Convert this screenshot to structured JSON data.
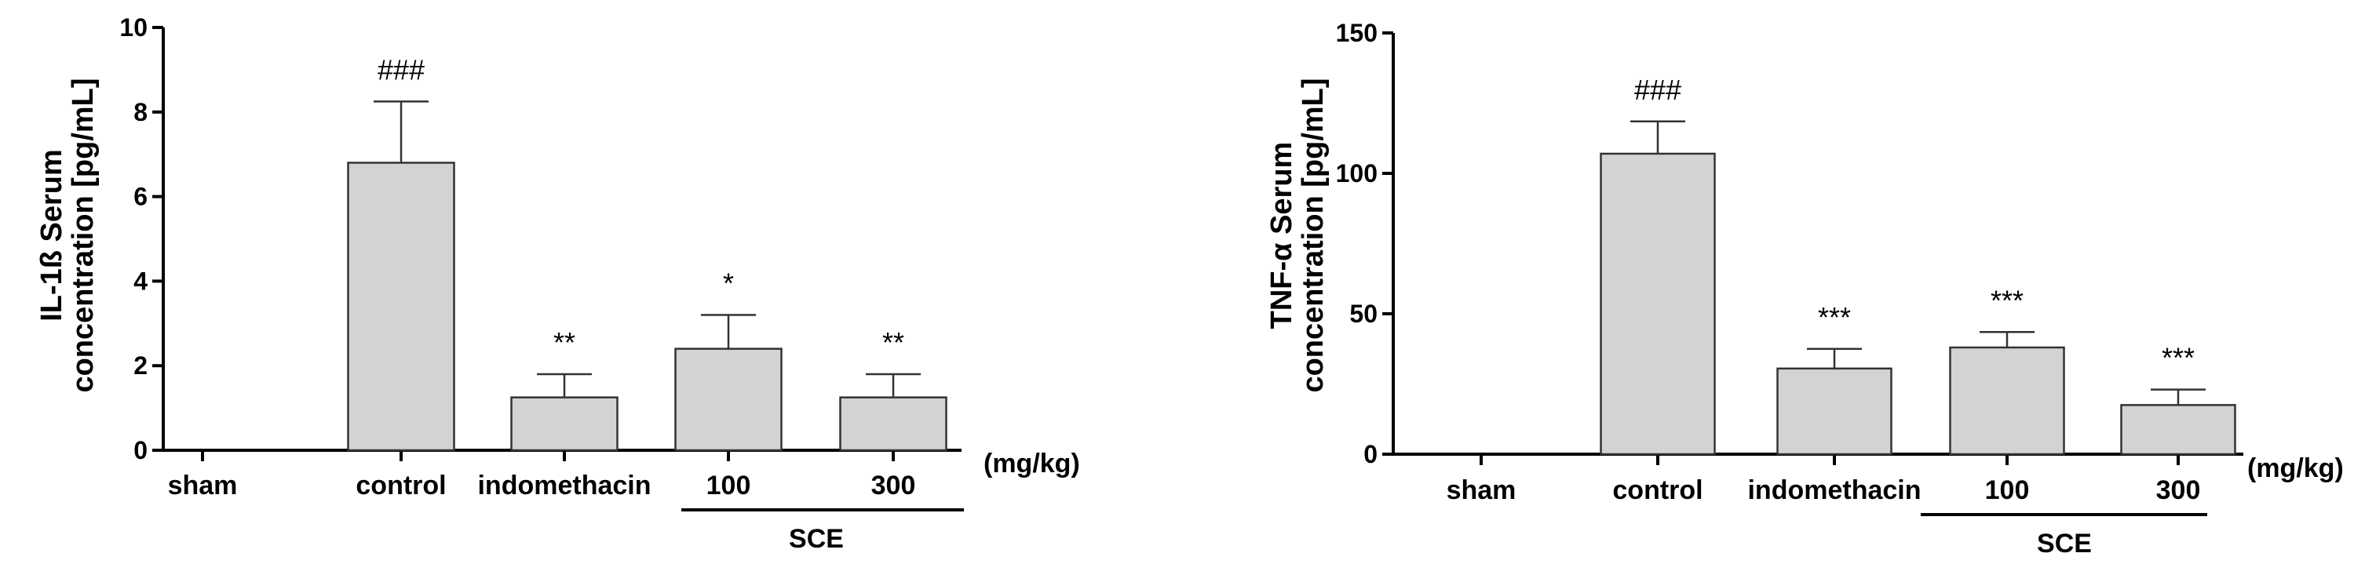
{
  "colors": {
    "bar_fill": "#d3d3d3",
    "bar_stroke": "#333333",
    "axis": "#000000"
  },
  "chart_data": [
    {
      "type": "bar",
      "categories": [
        "sham",
        "control",
        "indomethacin",
        "100",
        "300"
      ],
      "values": [
        0,
        6.8,
        1.25,
        2.4,
        1.25
      ],
      "error_upper": [
        0,
        8.25,
        1.8,
        3.2,
        1.8
      ],
      "significance": [
        "",
        "###",
        "**",
        "*",
        "**"
      ],
      "ylabel_line1": "IL-1ß Serum",
      "ylabel_line2": "concentration [pg/mL]",
      "unit_label": "(mg/kg)",
      "group_label": "SCE",
      "yticks": [
        0,
        2,
        4,
        6,
        8,
        10
      ],
      "ylim": [
        0,
        10
      ],
      "grid": false
    },
    {
      "type": "bar",
      "categories": [
        "sham",
        "control",
        "indomethacin",
        "100",
        "300"
      ],
      "values": [
        0,
        107,
        30.5,
        38,
        17.5
      ],
      "error_upper": [
        0,
        118.5,
        37.5,
        43.5,
        23
      ],
      "significance": [
        "",
        "###",
        "***",
        "***",
        "***"
      ],
      "ylabel_line1": "TNF-α Serum",
      "ylabel_line2": "concentration [pg/mL]",
      "unit_label": "(mg/kg)",
      "group_label": "SCE",
      "yticks": [
        0,
        50,
        100,
        150
      ],
      "ylim": [
        0,
        150
      ],
      "grid": false
    }
  ]
}
